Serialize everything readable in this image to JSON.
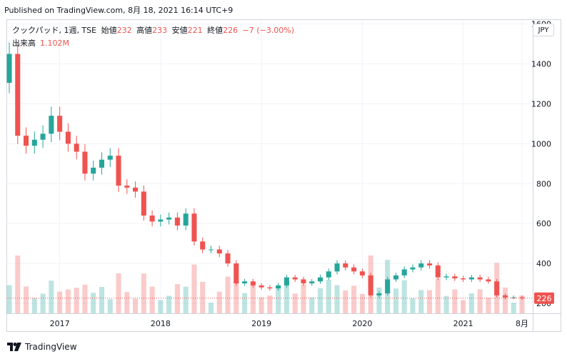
{
  "header": {
    "published_text": "Published on TradingView.com, 8月 18, 2021 16:14 UTC+9"
  },
  "legend": {
    "symbol": "クックパッド, 1週, TSE",
    "open_label": "始値",
    "open_value": "232",
    "high_label": "高値",
    "high_value": "233",
    "low_label": "安値",
    "low_value": "221",
    "close_label": "終値",
    "close_value": "226",
    "change": "−7 (−3.00%)",
    "volume_label": "出来高",
    "volume_value": "1.102M"
  },
  "currency_button": "JPY",
  "footer": {
    "brand": "TradingView"
  },
  "colors": {
    "up": "#26a69a",
    "down": "#ef5350",
    "grid": "#f0f3fa",
    "text": "#131722"
  },
  "chart_data": {
    "type": "candlestick",
    "symbol": "クックパッド",
    "interval": "1週",
    "exchange": "TSE",
    "currency": "JPY",
    "x": [
      "2016-07",
      "2016-08",
      "2016-09",
      "2016-10",
      "2016-11",
      "2016-12",
      "2017-01",
      "2017-02",
      "2017-03",
      "2017-04",
      "2017-05",
      "2017-06",
      "2017-07",
      "2017-08",
      "2017-09",
      "2017-10",
      "2017-11",
      "2017-12",
      "2018-01",
      "2018-02",
      "2018-03",
      "2018-04",
      "2018-05",
      "2018-06",
      "2018-07",
      "2018-08",
      "2018-09",
      "2018-10",
      "2018-11",
      "2018-12",
      "2019-01",
      "2019-02",
      "2019-03",
      "2019-04",
      "2019-05",
      "2019-06",
      "2019-07",
      "2019-08",
      "2019-09",
      "2019-10",
      "2019-11",
      "2019-12",
      "2020-01",
      "2020-02",
      "2020-03",
      "2020-04",
      "2020-05",
      "2020-06",
      "2020-07",
      "2020-08",
      "2020-09",
      "2020-10",
      "2020-11",
      "2020-12",
      "2021-01",
      "2021-02",
      "2021-03",
      "2021-04",
      "2021-05",
      "2021-06",
      "2021-07",
      "2021-08"
    ],
    "close": [
      1450,
      1040,
      990,
      1020,
      1050,
      1140,
      1060,
      1000,
      960,
      850,
      880,
      920,
      940,
      790,
      780,
      760,
      640,
      610,
      620,
      630,
      590,
      650,
      510,
      470,
      470,
      450,
      400,
      300,
      310,
      290,
      280,
      275,
      290,
      330,
      320,
      300,
      310,
      330,
      360,
      400,
      380,
      360,
      340,
      240,
      250,
      320,
      340,
      370,
      380,
      400,
      390,
      330,
      335,
      325,
      320,
      330,
      320,
      310,
      240,
      230,
      230,
      226
    ],
    "x_ticks": [
      "2017",
      "2018",
      "2019",
      "2020",
      "2021",
      "8月"
    ],
    "y_ticks": [
      200,
      400,
      600,
      800,
      1000,
      1200,
      1400,
      1600
    ],
    "ylim": [
      150,
      1620
    ],
    "last_price": 226,
    "last_volume": "1.102M",
    "grid": true
  }
}
